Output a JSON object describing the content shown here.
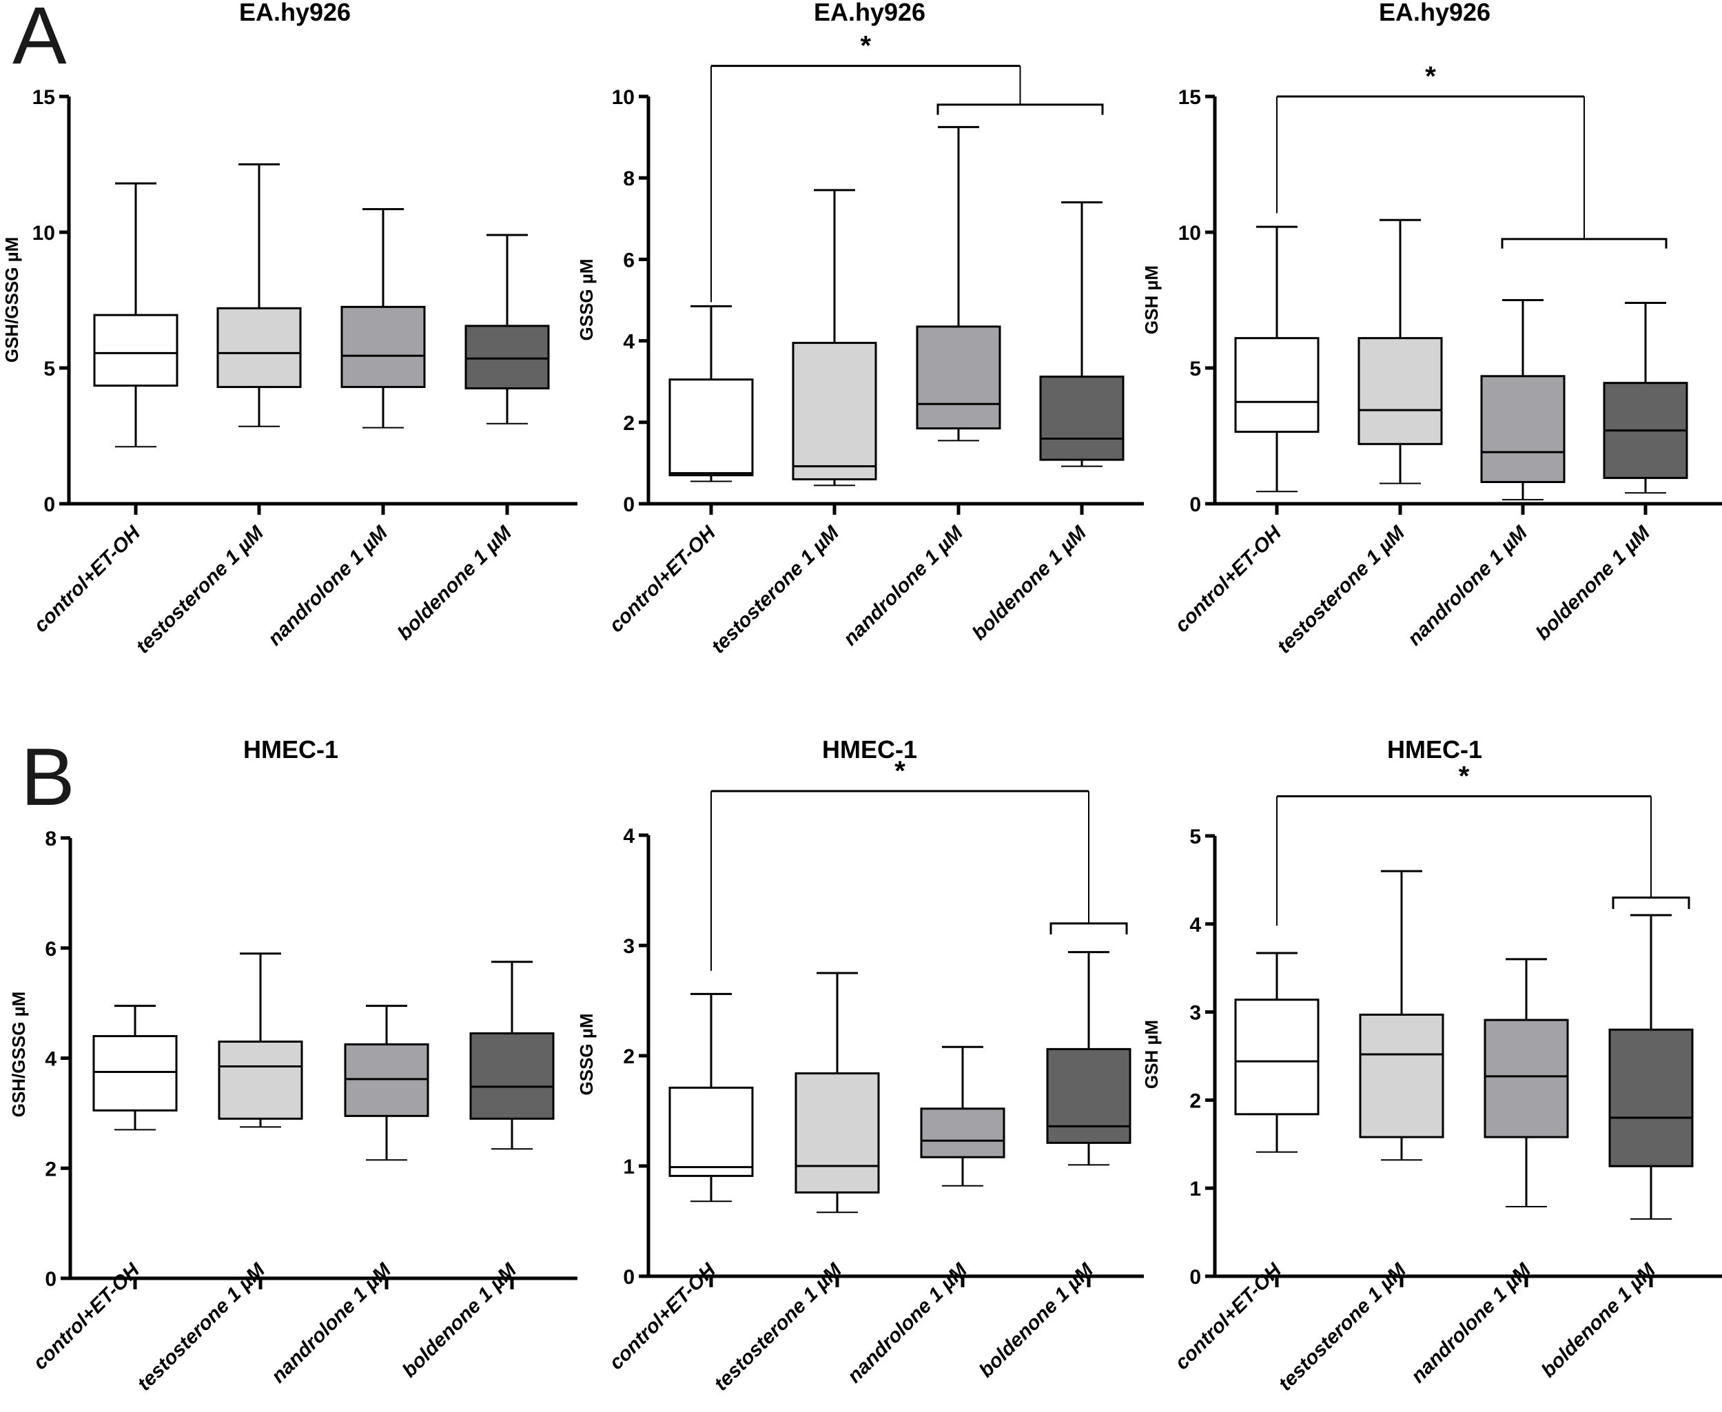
{
  "figure": {
    "panel_letters": [
      "A",
      "B"
    ]
  },
  "chart_data": [
    {
      "type": "box",
      "panel": "A",
      "title": "EA.hy926",
      "ylabel": "GSH/GSSG µM",
      "ylim": [
        0,
        15
      ],
      "yticks": [
        0,
        5,
        10,
        15
      ],
      "categories": [
        "control+ET-OH",
        "testosterone 1  µM",
        "nandrolone 1  µM",
        "boldenone 1  µM"
      ],
      "fills": [
        "#ffffff",
        "#d4d4d4",
        "#a3a3a7",
        "#636363"
      ],
      "boxes": [
        {
          "min": 2.1,
          "q1": 4.35,
          "median": 5.55,
          "q3": 6.95,
          "max": 11.8
        },
        {
          "min": 2.85,
          "q1": 4.3,
          "median": 5.55,
          "q3": 7.2,
          "max": 12.5
        },
        {
          "min": 2.8,
          "q1": 4.3,
          "median": 5.45,
          "q3": 7.25,
          "max": 10.85
        },
        {
          "min": 2.95,
          "q1": 4.25,
          "median": 5.35,
          "q3": 6.55,
          "max": 9.9
        }
      ],
      "significance": []
    },
    {
      "type": "box",
      "panel": "A",
      "title": "EA.hy926",
      "ylabel": "GSSG µM",
      "ylim": [
        0,
        10
      ],
      "yticks": [
        0,
        2,
        4,
        6,
        8,
        10
      ],
      "categories": [
        "control+ET-OH",
        "testosterone 1  µM",
        "nandrolone 1  µM",
        "boldenone 1  µM"
      ],
      "fills": [
        "#ffffff",
        "#d4d4d4",
        "#a3a3a7",
        "#636363"
      ],
      "boxes": [
        {
          "min": 0.55,
          "q1": 0.7,
          "median": 0.75,
          "q3": 3.05,
          "max": 4.85
        },
        {
          "min": 0.45,
          "q1": 0.6,
          "median": 0.92,
          "q3": 3.95,
          "max": 7.7
        },
        {
          "min": 1.55,
          "q1": 1.85,
          "median": 2.45,
          "q3": 4.35,
          "max": 9.25
        },
        {
          "min": 0.92,
          "q1": 1.08,
          "median": 1.6,
          "q3": 3.12,
          "max": 7.4
        }
      ],
      "significance": [
        {
          "label": "*",
          "from": [
            0
          ],
          "to": [
            2,
            3
          ],
          "level": 10.75,
          "group_level": 9.8,
          "left_drop": 4.95,
          "group_drop": 9.55
        }
      ]
    },
    {
      "type": "box",
      "panel": "A",
      "title": "EA.hy926",
      "ylabel": "GSH µM",
      "ylim": [
        0,
        15
      ],
      "yticks": [
        0,
        5,
        10,
        15
      ],
      "categories": [
        "control+ET-OH",
        "testosterone 1  µM",
        "nandrolone 1  µM",
        "boldenone 1  µM"
      ],
      "fills": [
        "#ffffff",
        "#d4d4d4",
        "#a3a3a7",
        "#636363"
      ],
      "boxes": [
        {
          "min": 0.45,
          "q1": 2.65,
          "median": 3.75,
          "q3": 6.1,
          "max": 10.2
        },
        {
          "min": 0.75,
          "q1": 2.2,
          "median": 3.45,
          "q3": 6.1,
          "max": 10.45
        },
        {
          "min": 0.15,
          "q1": 0.8,
          "median": 1.9,
          "q3": 4.7,
          "max": 7.5
        },
        {
          "min": 0.4,
          "q1": 0.95,
          "median": 2.7,
          "q3": 4.45,
          "max": 7.4
        }
      ],
      "significance": [
        {
          "label": "*",
          "from": [
            0
          ],
          "to": [
            2,
            3
          ],
          "level": 15.0,
          "group_level": 9.75,
          "left_drop": 10.7,
          "group_drop": 9.4
        }
      ]
    },
    {
      "type": "box",
      "panel": "B",
      "title": "HMEC-1",
      "ylabel": "GSH/GSSG µM",
      "ylim": [
        0,
        8
      ],
      "yticks": [
        0,
        2,
        4,
        6,
        8
      ],
      "categories": [
        "control+ET-OH",
        "testosterone 1  µM",
        "nandrolone 1  µM",
        "boldenone 1  µM"
      ],
      "fills": [
        "#ffffff",
        "#d4d4d4",
        "#a3a3a7",
        "#636363"
      ],
      "boxes": [
        {
          "min": 2.7,
          "q1": 3.05,
          "median": 3.75,
          "q3": 4.4,
          "max": 4.95
        },
        {
          "min": 2.75,
          "q1": 2.9,
          "median": 3.85,
          "q3": 4.3,
          "max": 5.9
        },
        {
          "min": 2.15,
          "q1": 2.95,
          "median": 3.62,
          "q3": 4.25,
          "max": 4.95
        },
        {
          "min": 2.35,
          "q1": 2.9,
          "median": 3.48,
          "q3": 4.45,
          "max": 5.75
        }
      ],
      "significance": []
    },
    {
      "type": "box",
      "panel": "B",
      "title": "HMEC-1",
      "ylabel": "GSSG µM",
      "ylim": [
        0,
        4
      ],
      "yticks": [
        0,
        1,
        2,
        3,
        4
      ],
      "categories": [
        "control+ET-OH",
        "testosterone 1  µM",
        "nandrolone 1  µM",
        "boldenone 1  µM"
      ],
      "fills": [
        "#ffffff",
        "#d4d4d4",
        "#a3a3a7",
        "#636363"
      ],
      "boxes": [
        {
          "min": 0.68,
          "q1": 0.91,
          "median": 0.99,
          "q3": 1.71,
          "max": 2.56
        },
        {
          "min": 0.58,
          "q1": 0.76,
          "median": 1.0,
          "q3": 1.84,
          "max": 2.75
        },
        {
          "min": 0.82,
          "q1": 1.08,
          "median": 1.23,
          "q3": 1.52,
          "max": 2.08
        },
        {
          "min": 1.01,
          "q1": 1.21,
          "median": 1.36,
          "q3": 2.06,
          "max": 2.94
        }
      ],
      "significance": [
        {
          "label": "*",
          "from": [
            0
          ],
          "to": [
            3
          ],
          "level": 4.4,
          "group_level": 3.2,
          "left_drop": 2.77,
          "group_drop": 3.1
        }
      ]
    },
    {
      "type": "box",
      "panel": "B",
      "title": "HMEC-1",
      "ylabel": "GSH µM",
      "ylim": [
        0,
        5
      ],
      "yticks": [
        0,
        1,
        2,
        3,
        4,
        5
      ],
      "categories": [
        "control+ET-OH",
        "testosterone 1  µM",
        "nandrolone 1  µM",
        "boldenone 1  µM"
      ],
      "fills": [
        "#ffffff",
        "#d4d4d4",
        "#a3a3a7",
        "#636363"
      ],
      "boxes": [
        {
          "min": 1.41,
          "q1": 1.84,
          "median": 2.44,
          "q3": 3.14,
          "max": 3.67
        },
        {
          "min": 1.32,
          "q1": 1.58,
          "median": 2.52,
          "q3": 2.97,
          "max": 4.6
        },
        {
          "min": 0.79,
          "q1": 1.58,
          "median": 2.27,
          "q3": 2.91,
          "max": 3.6
        },
        {
          "min": 0.65,
          "q1": 1.25,
          "median": 1.8,
          "q3": 2.8,
          "max": 4.1
        }
      ],
      "significance": [
        {
          "label": "*",
          "from": [
            0
          ],
          "to": [
            3
          ],
          "level": 5.45,
          "group_level": 4.3,
          "left_drop": 3.98,
          "group_drop": 4.17
        }
      ]
    }
  ]
}
